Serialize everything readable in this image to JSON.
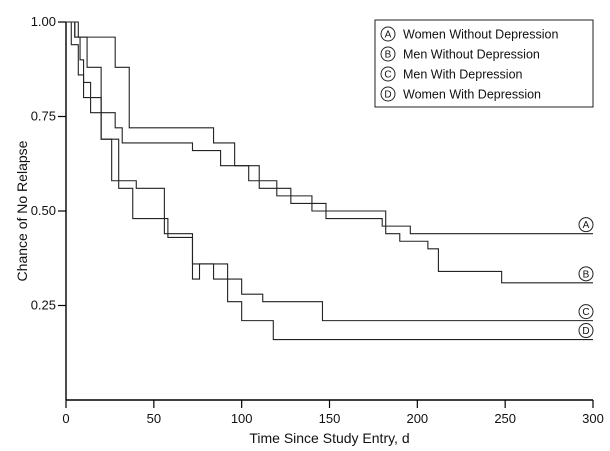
{
  "chart_data": {
    "type": "line",
    "step": true,
    "title": "",
    "xlabel": "Time Since Study Entry, d",
    "ylabel": "Chance of No Relapse",
    "xlim": [
      0,
      300
    ],
    "ylim": [
      0,
      1.0
    ],
    "x_ticks": [
      0,
      50,
      100,
      150,
      200,
      250,
      300
    ],
    "x_tick_labels": [
      "0",
      "50",
      "100",
      "150",
      "200",
      "250",
      "300"
    ],
    "y_ticks": [
      0.25,
      0.5,
      0.75,
      1.0
    ],
    "y_tick_labels": [
      "0.25",
      "0.50",
      "0.75",
      "1.00"
    ],
    "grid": false,
    "legend_position": "top-right",
    "series": [
      {
        "id": "A",
        "name": "Women Without Depression",
        "letter": "A",
        "x": [
          0,
          7,
          28,
          36,
          84,
          96,
          110,
          128,
          148,
          180,
          196,
          300
        ],
        "y": [
          1.0,
          0.96,
          0.88,
          0.72,
          0.68,
          0.62,
          0.56,
          0.52,
          0.48,
          0.46,
          0.44,
          0.44
        ]
      },
      {
        "id": "B",
        "name": "Men Without Depression",
        "letter": "B",
        "x": [
          0,
          5,
          12,
          20,
          28,
          32,
          60,
          72,
          88,
          104,
          120,
          140,
          182,
          190,
          206,
          212,
          248,
          300
        ],
        "y": [
          1.0,
          0.96,
          0.88,
          0.76,
          0.72,
          0.68,
          0.68,
          0.66,
          0.62,
          0.58,
          0.54,
          0.5,
          0.44,
          0.42,
          0.4,
          0.34,
          0.31,
          0.31
        ]
      },
      {
        "id": "C",
        "name": "Men With Depression",
        "letter": "C",
        "x": [
          0,
          5,
          8,
          10,
          14,
          20,
          26,
          40,
          56,
          72,
          76,
          84,
          100,
          112,
          146,
          300
        ],
        "y": [
          1.0,
          0.96,
          0.9,
          0.84,
          0.8,
          0.69,
          0.58,
          0.56,
          0.44,
          0.32,
          0.36,
          0.32,
          0.28,
          0.26,
          0.21,
          0.21
        ]
      },
      {
        "id": "D",
        "name": "Women With Depression",
        "letter": "D",
        "x": [
          0,
          3,
          7,
          10,
          14,
          20,
          30,
          38,
          58,
          72,
          92,
          100,
          118,
          300
        ],
        "y": [
          1.0,
          0.94,
          0.86,
          0.8,
          0.76,
          0.69,
          0.56,
          0.48,
          0.43,
          0.36,
          0.26,
          0.21,
          0.16,
          0.16
        ]
      }
    ]
  }
}
